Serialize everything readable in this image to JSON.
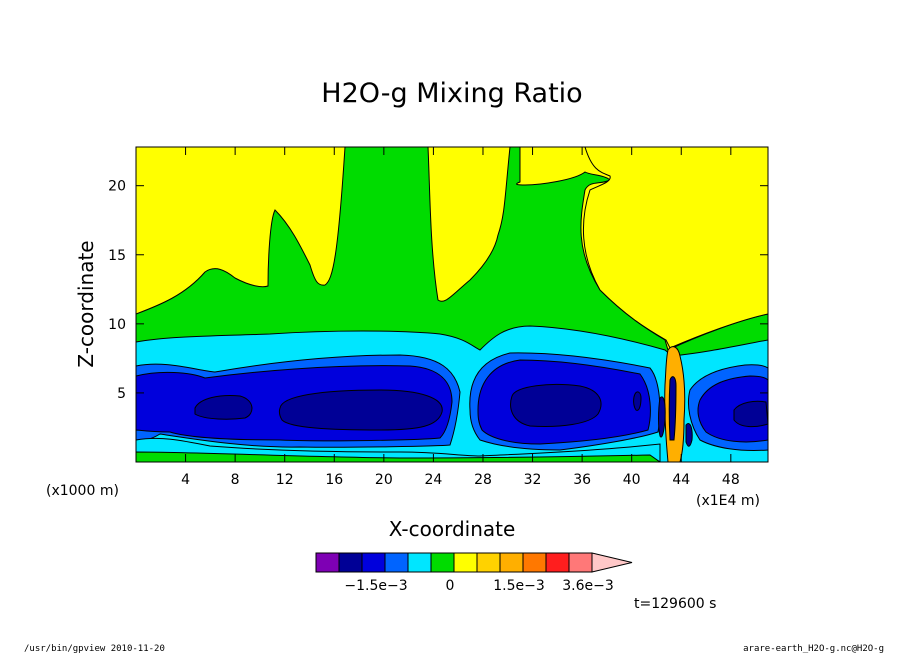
{
  "chart_data": {
    "type": "heatmap",
    "title": "H2O-g Mixing Ratio",
    "xlabel": "X-coordinate",
    "ylabel": "Z-coordinate",
    "x_unit": "(x1000 m)",
    "x_scale_note": "(x1E4 m)",
    "xlim": [
      0,
      51
    ],
    "ylim": [
      0,
      22.8
    ],
    "x_ticks": [
      4,
      8,
      12,
      16,
      20,
      24,
      28,
      32,
      36,
      40,
      44,
      48
    ],
    "x_tick_labels": [
      "4",
      "8",
      "12",
      "16",
      "20",
      "24",
      "28",
      "32",
      "36",
      "40",
      "44",
      "48"
    ],
    "y_ticks": [
      5,
      10,
      15,
      20
    ],
    "y_tick_labels": [
      "5",
      "10",
      "15",
      "20"
    ],
    "time_label": "t=129600 s",
    "colorbar": {
      "colors": [
        "#7e00b4",
        "#000096",
        "#0000dc",
        "#0064ff",
        "#00e6ff",
        "#00dc00",
        "#ffff00",
        "#ffd200",
        "#ffaf00",
        "#ff7800",
        "#ff1e1e",
        "#ff7878",
        "#ffc8c8"
      ],
      "labels": [
        {
          "text": "−1.5e−3",
          "value": -0.0015
        },
        {
          "text": "0",
          "value": 0
        },
        {
          "text": "1.5e−3",
          "value": 0.0015
        },
        {
          "text": "3.6e−3",
          "value": 0.0036
        }
      ]
    }
  },
  "footer": {
    "left": "/usr/bin/gpview  2010-11-20",
    "right": "arare-earth_H2O-g.nc@H2O-g"
  }
}
